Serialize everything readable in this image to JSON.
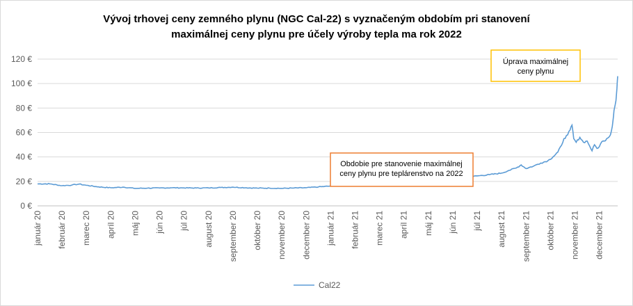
{
  "chart_data": {
    "type": "line",
    "title_lines": [
      "Vývoj trhovej ceny zemného plynu (NGC Cal-22) s vyznačeným obdobím pri stanovení",
      "maximálnej ceny plynu pre účely výroby tepla ma rok 2022"
    ],
    "y_ticks": [
      "0 €",
      "20 €",
      "40 €",
      "60 €",
      "80 €",
      "100 €",
      "120 €"
    ],
    "ylim": [
      0,
      120
    ],
    "x_ticks": [
      "január 20",
      "február 20",
      "marec 20",
      "apríl 20",
      "máj 20",
      "jún 20",
      "júl 20",
      "august 20",
      "september 20",
      "október 20",
      "november 20",
      "december 20",
      "január 21",
      "február 21",
      "marec 21",
      "apríl 21",
      "máj 21",
      "jún 21",
      "júl 21",
      "august 21",
      "september 21",
      "október 21",
      "november 21",
      "december 21"
    ],
    "xlim_months": [
      0,
      23.75
    ],
    "grid": "horizontal",
    "legend_position": "bottom",
    "series": [
      {
        "name": "Cal22",
        "color": "#5b9bd5",
        "points": [
          [
            0.0,
            18.0
          ],
          [
            0.5,
            18.0
          ],
          [
            1.0,
            16.5
          ],
          [
            1.4,
            17.0
          ],
          [
            1.7,
            17.8
          ],
          [
            2.0,
            16.8
          ],
          [
            2.5,
            15.5
          ],
          [
            3.0,
            14.8
          ],
          [
            3.5,
            15.3
          ],
          [
            4.0,
            14.3
          ],
          [
            4.5,
            14.5
          ],
          [
            5.0,
            14.6
          ],
          [
            5.5,
            14.8
          ],
          [
            6.0,
            14.7
          ],
          [
            6.5,
            14.6
          ],
          [
            7.0,
            14.7
          ],
          [
            7.5,
            15.0
          ],
          [
            8.0,
            15.3
          ],
          [
            8.5,
            14.8
          ],
          [
            9.0,
            14.5
          ],
          [
            9.5,
            14.5
          ],
          [
            10.0,
            14.3
          ],
          [
            10.5,
            14.6
          ],
          [
            11.0,
            14.8
          ],
          [
            11.5,
            15.5
          ],
          [
            12.0,
            16.2
          ],
          [
            12.5,
            17.0
          ],
          [
            13.0,
            17.3
          ],
          [
            13.5,
            17.5
          ],
          [
            14.0,
            17.8
          ],
          [
            14.5,
            18.5
          ],
          [
            15.0,
            19.2
          ],
          [
            15.5,
            20.5
          ],
          [
            16.0,
            22.0
          ],
          [
            16.5,
            21.8
          ],
          [
            17.0,
            22.3
          ],
          [
            17.5,
            23.2
          ],
          [
            18.0,
            24.5
          ],
          [
            18.5,
            25.5
          ],
          [
            19.0,
            26.8
          ],
          [
            19.3,
            29.0
          ],
          [
            19.6,
            31.0
          ],
          [
            19.8,
            33.5
          ],
          [
            20.0,
            30.5
          ],
          [
            20.3,
            32.5
          ],
          [
            20.6,
            35.0
          ],
          [
            20.9,
            37.0
          ],
          [
            21.1,
            40.0
          ],
          [
            21.3,
            44.0
          ],
          [
            21.45,
            49.5
          ],
          [
            21.55,
            55.0
          ],
          [
            21.7,
            58.0
          ],
          [
            21.8,
            62.0
          ],
          [
            21.88,
            66.0
          ],
          [
            21.95,
            55.0
          ],
          [
            22.05,
            52.0
          ],
          [
            22.2,
            56.0
          ],
          [
            22.35,
            52.0
          ],
          [
            22.5,
            53.0
          ],
          [
            22.6,
            49.0
          ],
          [
            22.7,
            45.0
          ],
          [
            22.8,
            50.0
          ],
          [
            22.9,
            47.0
          ],
          [
            23.0,
            48.5
          ],
          [
            23.1,
            52.5
          ],
          [
            23.2,
            53.0
          ],
          [
            23.3,
            55.0
          ],
          [
            23.45,
            58.0
          ],
          [
            23.5,
            62.0
          ],
          [
            23.56,
            70.0
          ],
          [
            23.6,
            78.0
          ],
          [
            23.65,
            83.0
          ],
          [
            23.68,
            86.0
          ],
          [
            23.72,
            96.0
          ],
          [
            23.75,
            106.0
          ]
        ]
      }
    ],
    "annotations": [
      {
        "id": "period",
        "lines": [
          "Obdobie pre stanovenie maximálnej",
          "ceny plynu pre teplárenstvo na 2022"
        ],
        "border_color": "#ed7d31",
        "x_range_months": [
          12.0,
          17.5
        ],
        "y_range": [
          10,
          22
        ]
      },
      {
        "id": "adjust",
        "lines": [
          "Úprava maximálnej",
          "ceny plynu"
        ],
        "border_color": "#ffc000",
        "x_range_months": [
          17.5,
          23.5
        ],
        "y_range": [
          36,
          42
        ]
      }
    ]
  }
}
